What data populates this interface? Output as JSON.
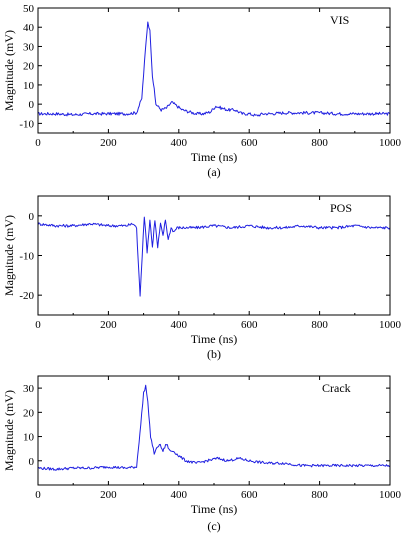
{
  "chart_data": [
    {
      "type": "line",
      "annotation": "VIS",
      "caption": "(a)",
      "xlabel": "Time (ns)",
      "ylabel": "Magnitude (mV)",
      "xlim": [
        0,
        1000
      ],
      "ylim": [
        -15,
        50
      ],
      "xticks": [
        0,
        200,
        400,
        600,
        800,
        1000
      ],
      "yticks": [
        -10,
        0,
        10,
        20,
        30,
        40,
        50
      ],
      "grid": false,
      "series": [
        {
          "color": "#1f1fe0",
          "x": [
            0,
            50,
            100,
            150,
            200,
            250,
            280,
            295,
            305,
            312,
            318,
            325,
            335,
            350,
            365,
            380,
            395,
            410,
            430,
            450,
            470,
            490,
            505,
            520,
            540,
            560,
            580,
            600,
            620,
            640,
            660,
            700,
            750,
            800,
            850,
            900,
            950,
            1000
          ],
          "y": [
            -5,
            -5,
            -5.5,
            -5,
            -5,
            -5,
            -4.5,
            3,
            28,
            43,
            38,
            15,
            0,
            -3,
            -2,
            1,
            -1,
            -3,
            -4,
            -5,
            -5,
            -4,
            -1,
            -2,
            -3,
            -3,
            -5,
            -5,
            -6,
            -5,
            -5,
            -4.5,
            -4.5,
            -4.5,
            -5,
            -5,
            -5,
            -5
          ]
        }
      ]
    },
    {
      "type": "line",
      "annotation": "POS",
      "caption": "(b)",
      "xlabel": "Time (ns)",
      "ylabel": "Magnitude (mV)",
      "xlim": [
        0,
        1000
      ],
      "ylim": [
        -25,
        5
      ],
      "xticks": [
        0,
        200,
        400,
        600,
        800,
        1000
      ],
      "yticks": [
        -20,
        -10,
        0
      ],
      "grid": false,
      "series": [
        {
          "color": "#1f1fe0",
          "x": [
            0,
            50,
            100,
            150,
            200,
            250,
            270,
            280,
            285,
            290,
            296,
            302,
            310,
            318,
            325,
            332,
            340,
            348,
            355,
            362,
            370,
            378,
            386,
            395,
            410,
            430,
            450,
            500,
            550,
            600,
            650,
            700,
            750,
            800,
            850,
            900,
            950,
            1000
          ],
          "y": [
            -2,
            -2.5,
            -2.5,
            -2,
            -2.5,
            -2.5,
            -2,
            -3,
            -12,
            -20,
            -10,
            0,
            -9,
            -1,
            -8,
            -1,
            -8,
            -2,
            -5,
            -1,
            -6,
            -3,
            -4,
            -3,
            -3,
            -3,
            -3,
            -2.5,
            -3,
            -2.5,
            -3,
            -3,
            -2.5,
            -3,
            -3,
            -2.5,
            -3,
            -3
          ]
        }
      ]
    },
    {
      "type": "line",
      "annotation": "Crack",
      "caption": "(c)",
      "xlabel": "Time (ns)",
      "ylabel": "Magnitude (mV)",
      "xlim": [
        0,
        1000
      ],
      "ylim": [
        -10,
        35
      ],
      "xticks": [
        0,
        200,
        400,
        600,
        800,
        1000
      ],
      "yticks": [
        0,
        10,
        20,
        30
      ],
      "grid": false,
      "series": [
        {
          "color": "#1f1fe0",
          "x": [
            0,
            50,
            100,
            150,
            200,
            250,
            280,
            292,
            300,
            306,
            312,
            320,
            330,
            345,
            355,
            365,
            375,
            385,
            400,
            420,
            450,
            480,
            510,
            540,
            570,
            600,
            650,
            700,
            750,
            800,
            850,
            900,
            950,
            1000
          ],
          "y": [
            -3,
            -3.5,
            -3,
            -3,
            -2.5,
            -3,
            -2.5,
            15,
            28,
            31,
            24,
            10,
            3,
            7,
            4,
            7,
            4,
            4,
            2,
            0,
            -1,
            0,
            1,
            0,
            1,
            0,
            -1,
            -1,
            -2,
            -2,
            -2,
            -2,
            -2,
            -2
          ]
        }
      ]
    }
  ]
}
